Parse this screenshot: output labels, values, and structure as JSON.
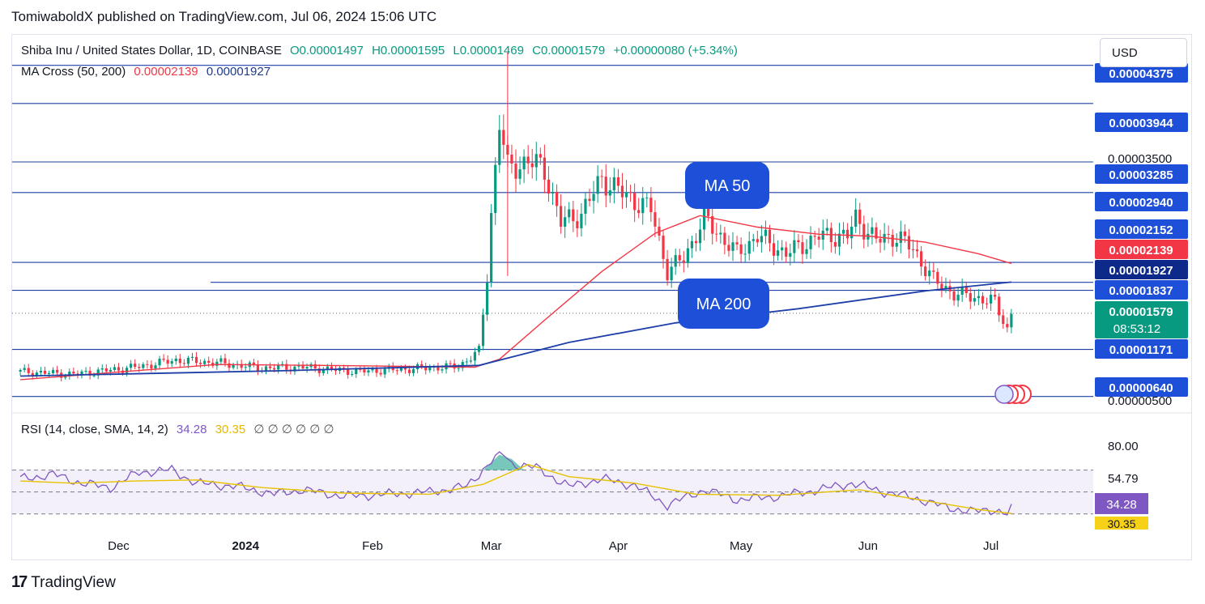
{
  "header": {
    "publisher": "TomiwaboldX published on TradingView.com, Jul 06, 2024 15:06 UTC"
  },
  "currency_button": "USD",
  "legend": {
    "symbol": "Shiba Inu / United States Dollar, 1D, COINBASE",
    "open": "O0.00001497",
    "high": "H0.00001595",
    "low": "L0.00001469",
    "close": "C0.00001579",
    "change": "+0.00000080 (+5.34%)",
    "ma_label": "MA Cross (50, 200)",
    "ma50_value": "0.00002139",
    "ma200_value": "0.00001927"
  },
  "annotations": {
    "ma50": "MA 50",
    "ma200": "MA 200"
  },
  "rsi_legend": {
    "label": "RSI (14, close, SMA, 14, 2)",
    "rsi": "34.28",
    "sma": "30.35",
    "extras": "∅ ∅ ∅ ∅ ∅ ∅"
  },
  "footer": {
    "brand": "TradingView",
    "logo": "17"
  },
  "colors": {
    "up": "#089981",
    "down": "#f23645",
    "ma50": "#f23645",
    "ma200": "#1e3fa8",
    "hline": "#1e3fa8",
    "rsi": "#7e57c2",
    "rsi_sma": "#e6c200",
    "badge_blue": "#1e4fd8"
  },
  "chart_data": [
    {
      "type": "candlestick",
      "title": "Shiba Inu / United States Dollar, 1D, COINBASE",
      "x_labels": [
        "Dec",
        "2024",
        "Feb",
        "Mar",
        "Apr",
        "May",
        "Jun",
        "Jul"
      ],
      "ylim": [
        5e-06,
        4.6e-05
      ],
      "y_ticks": [
        "0.00003500"
      ],
      "horizontal_levels": [
        "0.00004375",
        "0.00003944",
        "0.00003285",
        "0.00002940",
        "0.00002152",
        "0.00001927",
        "0.00001837",
        "0.00001171",
        "0.00000640"
      ],
      "price_labels": [
        {
          "label": "0.00004375",
          "kind": "level"
        },
        {
          "label": "0.00003944",
          "kind": "level"
        },
        {
          "label": "0.00003285",
          "kind": "level"
        },
        {
          "label": "0.00002940",
          "kind": "level"
        },
        {
          "label": "0.00002152",
          "kind": "level"
        },
        {
          "label": "0.00002139",
          "kind": "ma50"
        },
        {
          "label": "0.00001927",
          "kind": "ma200"
        },
        {
          "label": "0.00001837",
          "kind": "level"
        },
        {
          "label": "0.00001579",
          "kind": "price",
          "countdown": "08:53:12"
        },
        {
          "label": "0.00001171",
          "kind": "level"
        },
        {
          "label": "0.00000640",
          "kind": "level"
        }
      ],
      "y_ticks_bottom": [
        "0.00000500"
      ],
      "close_path": [
        [
          "2023-11-07",
          9.2e-06
        ],
        [
          "2023-11-20",
          8.9e-06
        ],
        [
          "2023-12-05",
          9.7e-06
        ],
        [
          "2023-12-15",
          1.05e-05
        ],
        [
          "2023-12-25",
          1.02e-05
        ],
        [
          "2024-01-05",
          9.6e-06
        ],
        [
          "2024-01-15",
          9.7e-06
        ],
        [
          "2024-01-28",
          9.2e-06
        ],
        [
          "2024-02-10",
          9.5e-06
        ],
        [
          "2024-02-22",
          9.8e-06
        ],
        [
          "2024-02-27",
          1.15e-05
        ],
        [
          "2024-02-29",
          2e-05
        ],
        [
          "2024-03-01",
          2.7e-05
        ],
        [
          "2024-03-03",
          3.75e-05
        ],
        [
          "2024-03-05",
          3.2e-05
        ],
        [
          "2024-03-10",
          3.3e-05
        ],
        [
          "2024-03-14",
          3.2e-05
        ],
        [
          "2024-03-18",
          2.6e-05
        ],
        [
          "2024-03-23",
          2.7e-05
        ],
        [
          "2024-03-28",
          3.1e-05
        ],
        [
          "2024-04-03",
          2.9e-05
        ],
        [
          "2024-04-09",
          2.75e-05
        ],
        [
          "2024-04-13",
          2.05e-05
        ],
        [
          "2024-04-17",
          2.2e-05
        ],
        [
          "2024-04-22",
          2.65e-05
        ],
        [
          "2024-04-30",
          2.25e-05
        ],
        [
          "2024-05-05",
          2.45e-05
        ],
        [
          "2024-05-12",
          2.25e-05
        ],
        [
          "2024-05-20",
          2.45e-05
        ],
        [
          "2024-05-27",
          2.45e-05
        ],
        [
          "2024-05-29",
          2.65e-05
        ],
        [
          "2024-06-03",
          2.4e-05
        ],
        [
          "2024-06-08",
          2.45e-05
        ],
        [
          "2024-06-12",
          2.3e-05
        ],
        [
          "2024-06-17",
          1.95e-05
        ],
        [
          "2024-06-22",
          1.8e-05
        ],
        [
          "2024-06-28",
          1.75e-05
        ],
        [
          "2024-07-02",
          1.7e-05
        ],
        [
          "2024-07-05",
          1.4e-05
        ],
        [
          "2024-07-06",
          1.58e-05
        ]
      ],
      "ma50": [
        [
          "2023-11-07",
          8.3e-06
        ],
        [
          "2023-12-05",
          9.3e-06
        ],
        [
          "2023-12-25",
          1e-05
        ],
        [
          "2024-01-20",
          9.9e-06
        ],
        [
          "2024-02-26",
          9.7e-06
        ],
        [
          "2024-03-03",
          1.06e-05
        ],
        [
          "2024-03-14",
          1.5e-05
        ],
        [
          "2024-03-28",
          2.05e-05
        ],
        [
          "2024-04-10",
          2.48e-05
        ],
        [
          "2024-04-21",
          2.68e-05
        ],
        [
          "2024-05-05",
          2.55e-05
        ],
        [
          "2024-05-20",
          2.47e-05
        ],
        [
          "2024-06-01",
          2.45e-05
        ],
        [
          "2024-06-15",
          2.38e-05
        ],
        [
          "2024-06-28",
          2.25e-05
        ],
        [
          "2024-07-06",
          2.14e-05
        ]
      ],
      "ma200": [
        [
          "2023-11-07",
          8.7e-06
        ],
        [
          "2024-01-10",
          9.3e-06
        ],
        [
          "2024-02-27",
          9.9e-06
        ],
        [
          "2024-03-20",
          1.25e-05
        ],
        [
          "2024-04-15",
          1.47e-05
        ],
        [
          "2024-05-15",
          1.63e-05
        ],
        [
          "2024-06-15",
          1.83e-05
        ],
        [
          "2024-07-06",
          1.93e-05
        ]
      ]
    },
    {
      "type": "line",
      "title": "RSI (14, close, SMA, 14, 2)",
      "x_labels": [
        "Dec",
        "2024",
        "Feb",
        "Mar",
        "Apr",
        "May",
        "Jun",
        "Jul"
      ],
      "y_ticks": [
        "80.00",
        "54.79"
      ],
      "ylim": [
        15,
        100
      ],
      "bands": {
        "upper": 70,
        "middle": 50,
        "lower": 30
      },
      "series": [
        {
          "name": "RSI",
          "points": [
            [
              "2023-11-07",
              62
            ],
            [
              "2023-11-15",
              66
            ],
            [
              "2023-11-22",
              58
            ],
            [
              "2023-11-29",
              54
            ],
            [
              "2023-12-06",
              68
            ],
            [
              "2023-12-14",
              70
            ],
            [
              "2023-12-20",
              58
            ],
            [
              "2023-12-30",
              55
            ],
            [
              "2024-01-08",
              48
            ],
            [
              "2024-01-15",
              52
            ],
            [
              "2024-01-25",
              46
            ],
            [
              "2024-02-05",
              48
            ],
            [
              "2024-02-15",
              50
            ],
            [
              "2024-02-24",
              55
            ],
            [
              "2024-03-01",
              78
            ],
            [
              "2024-03-04",
              85
            ],
            [
              "2024-03-06",
              76
            ],
            [
              "2024-03-12",
              72
            ],
            [
              "2024-03-20",
              55
            ],
            [
              "2024-03-28",
              62
            ],
            [
              "2024-04-05",
              56
            ],
            [
              "2024-04-13",
              38
            ],
            [
              "2024-04-22",
              52
            ],
            [
              "2024-04-30",
              43
            ],
            [
              "2024-05-10",
              46
            ],
            [
              "2024-05-20",
              52
            ],
            [
              "2024-05-28",
              58
            ],
            [
              "2024-06-05",
              50
            ],
            [
              "2024-06-13",
              44
            ],
            [
              "2024-06-20",
              36
            ],
            [
              "2024-06-27",
              32
            ],
            [
              "2024-07-02",
              34
            ],
            [
              "2024-07-05",
              30
            ],
            [
              "2024-07-06",
              34.28
            ]
          ]
        },
        {
          "name": "RSI-based MA",
          "points": [
            [
              "2023-11-07",
              60
            ],
            [
              "2023-11-20",
              58
            ],
            [
              "2023-12-05",
              60
            ],
            [
              "2023-12-20",
              61
            ],
            [
              "2024-01-05",
              54
            ],
            [
              "2024-01-25",
              49
            ],
            [
              "2024-02-15",
              48
            ],
            [
              "2024-02-28",
              57
            ],
            [
              "2024-03-10",
              75
            ],
            [
              "2024-03-20",
              64
            ],
            [
              "2024-04-05",
              58
            ],
            [
              "2024-04-20",
              48
            ],
            [
              "2024-05-10",
              47
            ],
            [
              "2024-05-30",
              52
            ],
            [
              "2024-06-15",
              42
            ],
            [
              "2024-06-28",
              34
            ],
            [
              "2024-07-06",
              30.35
            ]
          ]
        }
      ]
    }
  ]
}
